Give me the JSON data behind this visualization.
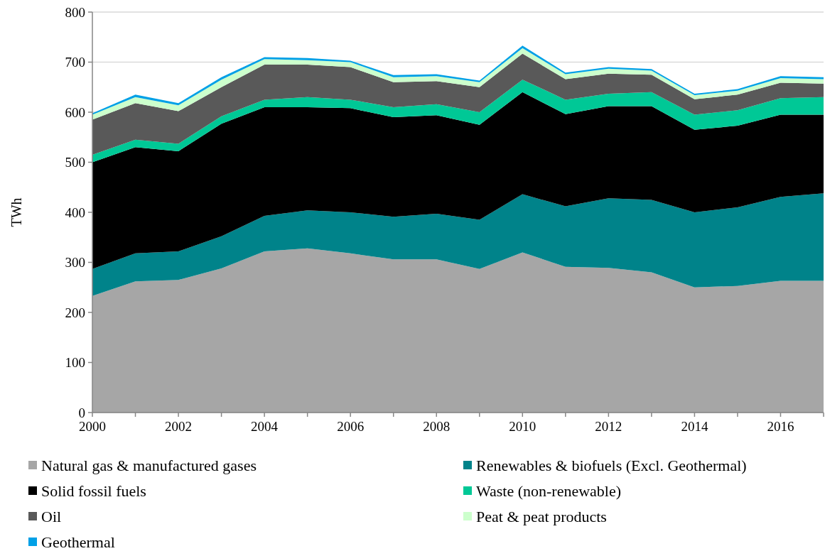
{
  "chart_data": {
    "type": "area",
    "stacked": true,
    "ylabel": "TWh",
    "x": [
      2000,
      2001,
      2002,
      2003,
      2004,
      2005,
      2006,
      2007,
      2008,
      2009,
      2010,
      2011,
      2012,
      2013,
      2014,
      2015,
      2016,
      2017
    ],
    "xlim": [
      2000,
      2017
    ],
    "xticks": [
      2000,
      {
        "value": 2001,
        "label": null
      },
      2002,
      {
        "value": 2003,
        "label": null
      },
      2004,
      {
        "value": 2005,
        "label": null
      },
      2006,
      {
        "value": 2007,
        "label": null
      },
      2008,
      {
        "value": 2009,
        "label": null
      },
      2010,
      {
        "value": 2011,
        "label": null
      },
      2012,
      {
        "value": 2013,
        "label": null
      },
      2014,
      {
        "value": 2015,
        "label": null
      },
      2016,
      {
        "value": 2017,
        "label": null
      }
    ],
    "ylim": [
      0,
      800
    ],
    "yticks": [
      0,
      100,
      200,
      300,
      400,
      500,
      600,
      700,
      800
    ],
    "grid": "y",
    "legend": "bottom",
    "series": [
      {
        "name": "Natural gas & manufactured gases",
        "color": "#a6a6a6",
        "values": [
          233,
          262,
          265,
          288,
          322,
          328,
          318,
          306,
          306,
          287,
          320,
          291,
          289,
          280,
          250,
          253,
          263,
          263
        ]
      },
      {
        "name": "Renewables & biofuels (Excl. Geothermal)",
        "color": "#00838a",
        "values": [
          54,
          56,
          57,
          64,
          71,
          76,
          82,
          85,
          91,
          98,
          116,
          121,
          139,
          145,
          150,
          157,
          168,
          175
        ]
      },
      {
        "name": "Solid fossil fuels",
        "color": "#000000",
        "values": [
          213,
          212,
          200,
          225,
          217,
          206,
          208,
          199,
          197,
          190,
          204,
          184,
          184,
          187,
          165,
          163,
          164,
          157
        ]
      },
      {
        "name": "Waste (non-renewable)",
        "color": "#00c896",
        "values": [
          15,
          15,
          15,
          15,
          15,
          20,
          17,
          20,
          22,
          25,
          25,
          29,
          25,
          28,
          30,
          31,
          33,
          35
        ]
      },
      {
        "name": "Oil",
        "color": "#595959",
        "values": [
          70,
          73,
          65,
          58,
          70,
          65,
          65,
          50,
          46,
          50,
          52,
          41,
          40,
          35,
          31,
          31,
          31,
          27
        ]
      },
      {
        "name": "Peat & peat products",
        "color": "#ccffcc",
        "values": [
          10,
          12,
          12,
          15,
          11,
          9,
          10,
          10,
          10,
          10,
          11,
          10,
          10,
          8,
          8,
          8,
          9,
          9
        ]
      },
      {
        "name": "Geothermal",
        "color": "#00a0e6",
        "values": [
          3,
          5,
          4,
          5,
          4,
          4,
          3,
          4,
          4,
          3,
          5,
          3,
          3,
          3,
          3,
          3,
          4,
          4
        ]
      }
    ]
  }
}
